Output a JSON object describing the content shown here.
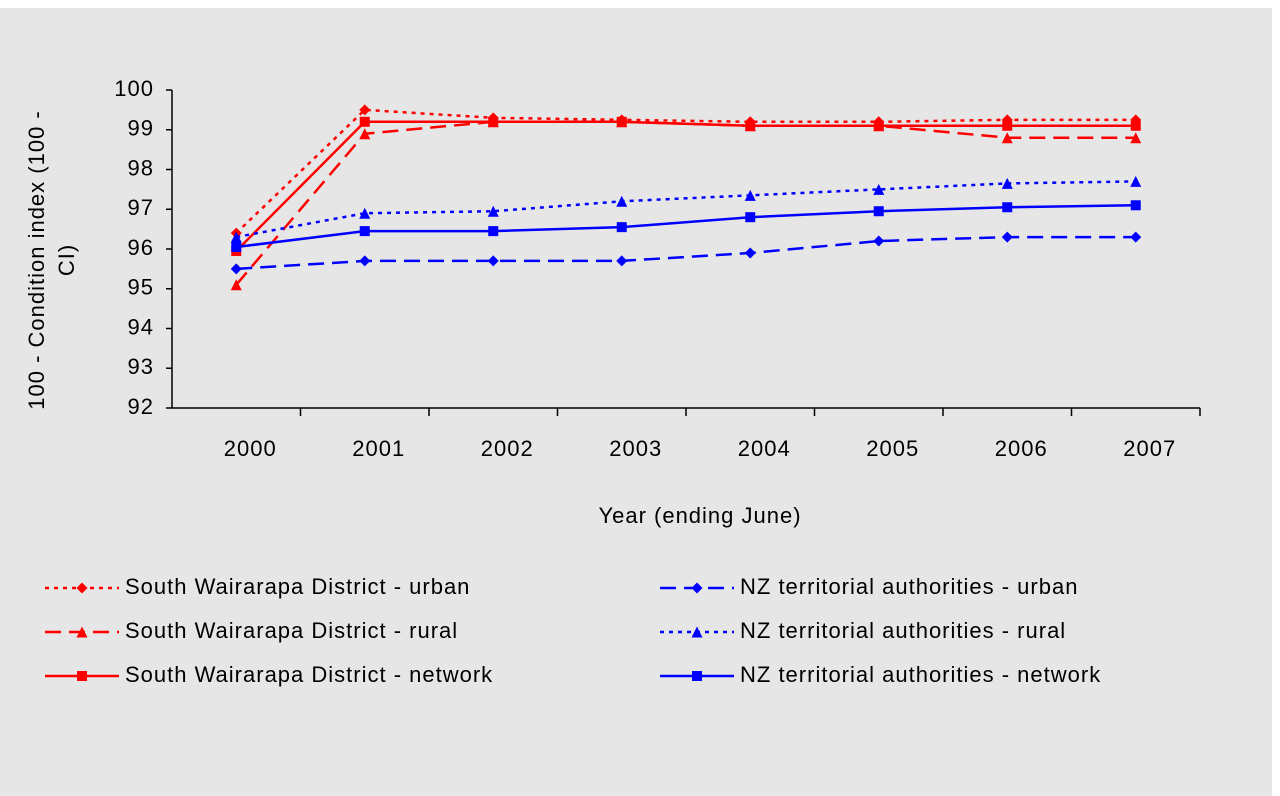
{
  "chart_data": {
    "type": "line",
    "ylabel": [
      "100 - Condition index (100 -",
      "CI)"
    ],
    "xlabel": "Year (ending June)",
    "categories": [
      "2000",
      "2001",
      "2002",
      "2003",
      "2004",
      "2005",
      "2006",
      "2007"
    ],
    "ylim": [
      92,
      100
    ],
    "yticks": [
      92,
      93,
      94,
      95,
      96,
      97,
      98,
      99,
      100
    ],
    "series": [
      {
        "name": "South Wairarapa District - urban",
        "color": "#ff0000",
        "dash": "dotted",
        "marker": "diamond",
        "values": [
          96.4,
          99.5,
          99.3,
          99.25,
          99.2,
          99.2,
          99.25,
          99.25
        ]
      },
      {
        "name": "South Wairarapa District - rural",
        "color": "#ff0000",
        "dash": "dashed",
        "marker": "triangle",
        "values": [
          95.1,
          98.9,
          99.2,
          99.2,
          99.1,
          99.1,
          98.8,
          98.8
        ]
      },
      {
        "name": "South Wairarapa District - network",
        "color": "#ff0000",
        "dash": "solid",
        "marker": "square",
        "values": [
          95.95,
          99.2,
          99.2,
          99.2,
          99.1,
          99.1,
          99.1,
          99.1
        ]
      },
      {
        "name": "NZ territorial authorities - urban",
        "color": "#0000ff",
        "dash": "dashed",
        "marker": "diamond",
        "values": [
          95.5,
          95.7,
          95.7,
          95.7,
          95.9,
          96.2,
          96.3,
          96.3
        ]
      },
      {
        "name": "NZ territorial authorities - rural",
        "color": "#0000ff",
        "dash": "dotted",
        "marker": "triangle",
        "values": [
          96.3,
          96.9,
          96.95,
          97.2,
          97.35,
          97.5,
          97.65,
          97.7
        ]
      },
      {
        "name": "NZ territorial authorities - network",
        "color": "#0000ff",
        "dash": "solid",
        "marker": "square",
        "values": [
          96.05,
          96.45,
          96.45,
          96.55,
          96.8,
          96.95,
          97.05,
          97.1
        ]
      }
    ]
  }
}
